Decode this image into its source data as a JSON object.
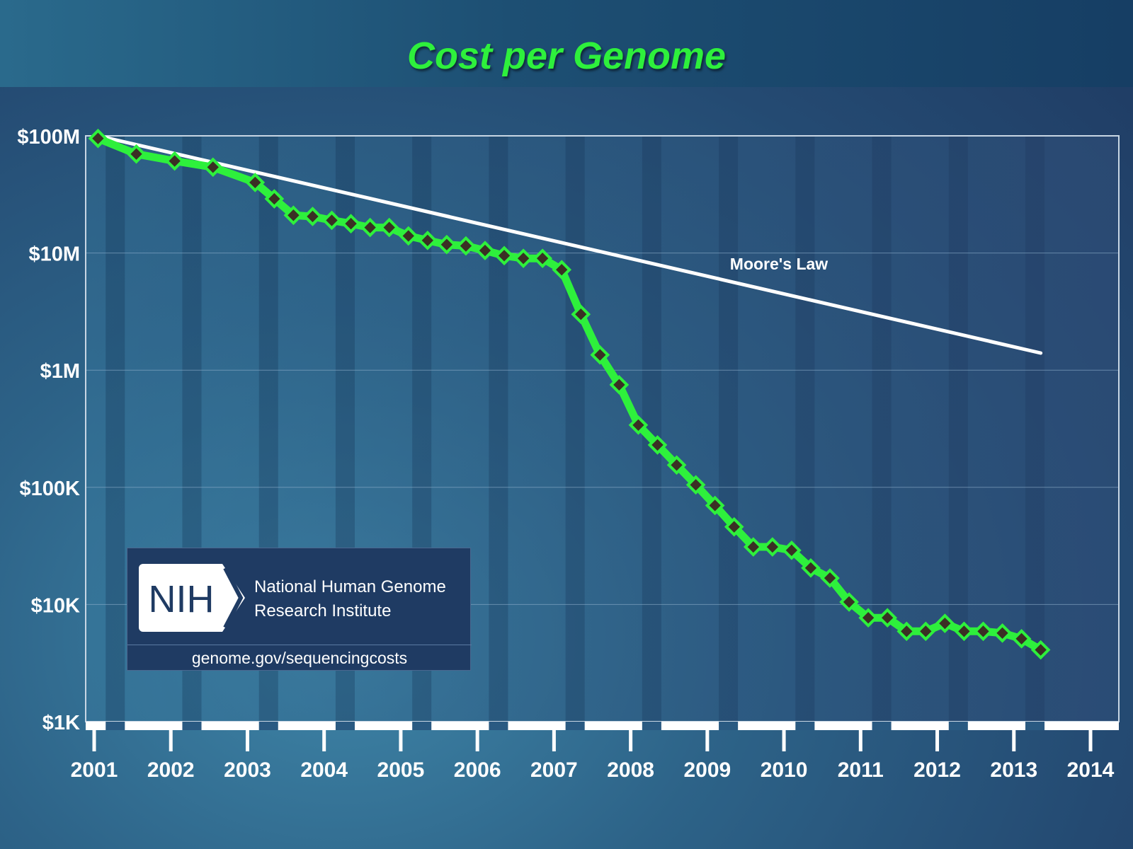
{
  "chart_data": {
    "type": "line",
    "title": "Cost per Genome",
    "y_scale": "log",
    "ylim": [
      1000,
      100000000
    ],
    "y_ticks": [
      {
        "value": 100000000,
        "label": "$100M"
      },
      {
        "value": 10000000,
        "label": "$10M"
      },
      {
        "value": 1000000,
        "label": "$1M"
      },
      {
        "value": 100000,
        "label": "$100K"
      },
      {
        "value": 10000,
        "label": "$10K"
      },
      {
        "value": 1000,
        "label": "$1K"
      }
    ],
    "xlim": [
      2001.0,
      2014.0
    ],
    "x_ticks": [
      {
        "value": 2001,
        "label": "2001"
      },
      {
        "value": 2002,
        "label": "2002"
      },
      {
        "value": 2003,
        "label": "2003"
      },
      {
        "value": 2004,
        "label": "2004"
      },
      {
        "value": 2005,
        "label": "2005"
      },
      {
        "value": 2006,
        "label": "2006"
      },
      {
        "value": 2007,
        "label": "2007"
      },
      {
        "value": 2008,
        "label": "2008"
      },
      {
        "value": 2009,
        "label": "2009"
      },
      {
        "value": 2010,
        "label": "2010"
      },
      {
        "value": 2011,
        "label": "2011"
      },
      {
        "value": 2012,
        "label": "2012"
      },
      {
        "value": 2013,
        "label": "2013"
      },
      {
        "value": 2014,
        "label": "2014"
      }
    ],
    "series": [
      {
        "name": "Cost per Genome",
        "color": "#2ef03c",
        "marker_color": "#3b2f24",
        "points": [
          [
            2001.05,
            95000000
          ],
          [
            2001.55,
            70000000
          ],
          [
            2002.05,
            61000000
          ],
          [
            2002.55,
            54000000
          ],
          [
            2003.1,
            40000000
          ],
          [
            2003.35,
            29000000
          ],
          [
            2003.6,
            21000000
          ],
          [
            2003.85,
            20500000
          ],
          [
            2004.1,
            19000000
          ],
          [
            2004.35,
            17800000
          ],
          [
            2004.6,
            16500000
          ],
          [
            2004.85,
            16500000
          ],
          [
            2005.1,
            14000000
          ],
          [
            2005.35,
            12800000
          ],
          [
            2005.6,
            11800000
          ],
          [
            2005.85,
            11500000
          ],
          [
            2006.1,
            10500000
          ],
          [
            2006.35,
            9500000
          ],
          [
            2006.6,
            9000000
          ],
          [
            2006.85,
            9000000
          ],
          [
            2007.1,
            7200000
          ],
          [
            2007.35,
            3000000
          ],
          [
            2007.6,
            1350000
          ],
          [
            2007.85,
            750000
          ],
          [
            2008.1,
            340000
          ],
          [
            2008.35,
            230000
          ],
          [
            2008.6,
            155000
          ],
          [
            2008.85,
            105000
          ],
          [
            2009.1,
            70000
          ],
          [
            2009.35,
            46000
          ],
          [
            2009.6,
            31000
          ],
          [
            2009.85,
            31000
          ],
          [
            2010.1,
            29000
          ],
          [
            2010.35,
            20500
          ],
          [
            2010.6,
            16800
          ],
          [
            2010.85,
            10500
          ],
          [
            2011.1,
            7700
          ],
          [
            2011.35,
            7700
          ],
          [
            2011.6,
            5900
          ],
          [
            2011.85,
            5900
          ],
          [
            2012.1,
            6900
          ],
          [
            2012.35,
            5900
          ],
          [
            2012.6,
            5900
          ],
          [
            2012.85,
            5700
          ],
          [
            2013.1,
            5100
          ],
          [
            2013.35,
            4100
          ]
        ]
      }
    ],
    "reference_line": {
      "label": "Moore's Law",
      "color": "#ffffff",
      "points": [
        [
          2001.05,
          100000000
        ],
        [
          2013.35,
          1400000
        ]
      ]
    },
    "annotation_moore": "Moore's Law"
  },
  "logo": {
    "acronym": "NIH",
    "name_line1": "National Human Genome",
    "name_line2": "Research Institute",
    "url": "genome.gov/sequencingcosts"
  }
}
